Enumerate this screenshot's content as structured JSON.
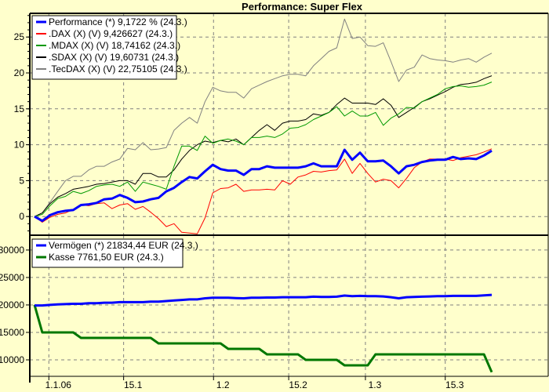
{
  "chart_data": [
    {
      "type": "line",
      "title": "Performance: Super Flex",
      "xlabel": "",
      "ylabel": "",
      "ylim": [
        -2.6,
        28.3
      ],
      "yticks": [
        0,
        5,
        10,
        15,
        20,
        25
      ],
      "grid": true,
      "legend_placement": "top-left",
      "x_ticks": [
        {
          "label": "1.1.06",
          "index": 1.85
        },
        {
          "label": "15.1",
          "index": 11.5
        },
        {
          "label": "1.2",
          "index": 23.1
        },
        {
          "label": "15.2",
          "index": 32.8
        },
        {
          "label": "1.3",
          "index": 42.7
        },
        {
          "label": "15.3",
          "index": 53.0
        }
      ],
      "series": [
        {
          "name": "Performance (*) 9,1722 % (24.3.)",
          "color": "#0000FF",
          "width": 3,
          "values": [
            0,
            -0.6,
            0.2,
            0.6,
            0.8,
            0.9,
            1.6,
            1.7,
            1.9,
            2.4,
            2.5,
            3.0,
            2.6,
            2.0,
            2.1,
            2.4,
            2.6,
            3.5,
            4.0,
            4.8,
            5.5,
            5.3,
            6.3,
            7.2,
            6.6,
            6.4,
            6.4,
            5.8,
            6.6,
            6.6,
            7.0,
            6.8,
            6.8,
            6.8,
            6.8,
            7.0,
            7.4,
            7.0,
            7.0,
            7.0,
            9.3,
            7.9,
            8.9,
            7.7,
            7.7,
            7.8,
            7.0,
            6.0,
            7.0,
            7.2,
            7.6,
            7.8,
            7.9,
            7.9,
            8.3,
            8.0,
            8.1,
            8.0,
            8.5,
            9.17
          ]
        },
        {
          "name": ".DAX (X) (V) 9,426627 (24.3.)",
          "color": "#FF0000",
          "width": 1,
          "values": [
            0,
            -0.8,
            -0.1,
            0.3,
            0.5,
            1.0,
            1.6,
            1.5,
            1.8,
            1.9,
            1.1,
            1.6,
            1.8,
            1.0,
            1.4,
            0.6,
            -0.3,
            -1.4,
            -1.0,
            -2.2,
            -2.3,
            -2.4,
            -0.2,
            3.3,
            3.9,
            4.0,
            4.5,
            3.5,
            3.7,
            3.7,
            3.8,
            3.7,
            5.0,
            4.5,
            5.5,
            5.8,
            6.3,
            6.2,
            6.4,
            6.5,
            8.0,
            6.0,
            7.4,
            6.0,
            4.8,
            5.2,
            5.0,
            4.0,
            5.3,
            6.8,
            7.6,
            8.0,
            8.0,
            8.0,
            7.8,
            8.2,
            8.4,
            8.6,
            9.0,
            9.43
          ]
        },
        {
          "name": ".MDAX (X) (V) 18,74162 (24.3.)",
          "color": "#009900",
          "width": 1,
          "values": [
            0,
            0.3,
            1.5,
            2.5,
            2.8,
            3.5,
            3.2,
            3.6,
            4.2,
            4.4,
            4.5,
            4.2,
            4.8,
            3.5,
            4.8,
            4.5,
            4.2,
            3.8,
            7.0,
            9.8,
            9.8,
            9.2,
            11.2,
            10.2,
            10.6,
            10.8,
            10.5,
            10.0,
            11.0,
            11.0,
            11.2,
            11.0,
            11.5,
            12.3,
            12.4,
            12.8,
            13.5,
            14.0,
            14.5,
            15.3,
            14.0,
            14.7,
            14.0,
            14.0,
            14.5,
            12.7,
            13.7,
            14.3,
            15.2,
            15.1,
            16.0,
            16.5,
            17.0,
            17.8,
            18.1,
            18.2,
            18.0,
            18.1,
            18.3,
            18.74
          ]
        },
        {
          "name": ".SDAX (X) (V) 19,60731 (24.3.)",
          "color": "#000000",
          "width": 1,
          "values": [
            0,
            0.5,
            1.8,
            2.7,
            3.2,
            3.8,
            4.0,
            4.2,
            4.5,
            4.6,
            4.8,
            5.0,
            5.0,
            4.5,
            6.0,
            6.0,
            5.5,
            5.5,
            6.5,
            8.0,
            9.2,
            10.0,
            10.5,
            10.3,
            10.6,
            10.4,
            10.8,
            10.0,
            11.0,
            12.0,
            12.8,
            12.0,
            13.0,
            13.3,
            13.3,
            13.5,
            14.3,
            14.1,
            14.5,
            15.6,
            16.5,
            15.8,
            15.8,
            15.8,
            15.6,
            16.4,
            15.5,
            13.8,
            14.5,
            15.2,
            16.0,
            16.4,
            16.9,
            17.4,
            18.0,
            18.4,
            18.5,
            18.7,
            19.2,
            19.61
          ]
        },
        {
          "name": ".TecDAX (X) (V) 22,75105 (24.3.)",
          "color": "#808080",
          "width": 1,
          "values": [
            0,
            0.5,
            2.0,
            3.5,
            5.0,
            5.6,
            5.6,
            6.5,
            7.0,
            7.0,
            7.6,
            8.0,
            9.5,
            9.3,
            10.3,
            9.3,
            9.4,
            9.6,
            12.0,
            13.0,
            13.8,
            13.0,
            16.0,
            18.0,
            17.5,
            17.3,
            17.3,
            16.5,
            17.8,
            18.3,
            18.8,
            19.2,
            19.6,
            19.8,
            19.8,
            19.6,
            21.0,
            22.0,
            23.0,
            23.5,
            27.5,
            24.8,
            25.0,
            23.8,
            23.7,
            24.2,
            21.6,
            18.8,
            20.4,
            20.8,
            22.5,
            22.0,
            21.8,
            21.7,
            21.5,
            21.8,
            22.0,
            21.5,
            22.2,
            22.75
          ]
        }
      ]
    },
    {
      "type": "line",
      "title": "",
      "ylim": [
        7000,
        32700
      ],
      "yticks": [
        10000,
        15000,
        20000,
        25000,
        30000
      ],
      "grid": true,
      "legend_placement": "top-left",
      "series": [
        {
          "name": "Vermögen (*) 21834,44 EUR (24.3.)",
          "color": "#0000FF",
          "width": 3,
          "values": [
            19900,
            19900,
            20000,
            20100,
            20150,
            20200,
            20200,
            20300,
            20300,
            20400,
            20400,
            20500,
            20500,
            20500,
            20500,
            20600,
            20600,
            20700,
            20800,
            20900,
            21000,
            21000,
            21200,
            21300,
            21300,
            21300,
            21250,
            21200,
            21300,
            21300,
            21350,
            21350,
            21400,
            21400,
            21400,
            21400,
            21500,
            21450,
            21450,
            21500,
            21700,
            21600,
            21650,
            21600,
            21600,
            21550,
            21400,
            21200,
            21400,
            21450,
            21500,
            21550,
            21600,
            21600,
            21650,
            21650,
            21650,
            21650,
            21750,
            21834
          ]
        },
        {
          "name": "Kasse 7761,50 EUR (24.3.)",
          "color": "#007700",
          "width": 3,
          "values": [
            20000,
            15000,
            15000,
            15000,
            15000,
            15000,
            14000,
            14000,
            14000,
            14000,
            14000,
            14000,
            14000,
            14000,
            14000,
            14000,
            13000,
            13000,
            13000,
            13000,
            13000,
            13000,
            13000,
            13000,
            13000,
            12000,
            12000,
            12000,
            12000,
            12000,
            11000,
            11000,
            11000,
            11000,
            11000,
            10000,
            10000,
            10000,
            10000,
            10000,
            9000,
            9000,
            9000,
            9000,
            11000,
            11000,
            11000,
            11000,
            11000,
            11000,
            11000,
            11000,
            11000,
            11000,
            11000,
            11000,
            11000,
            11000,
            11000,
            7761
          ]
        }
      ]
    }
  ]
}
